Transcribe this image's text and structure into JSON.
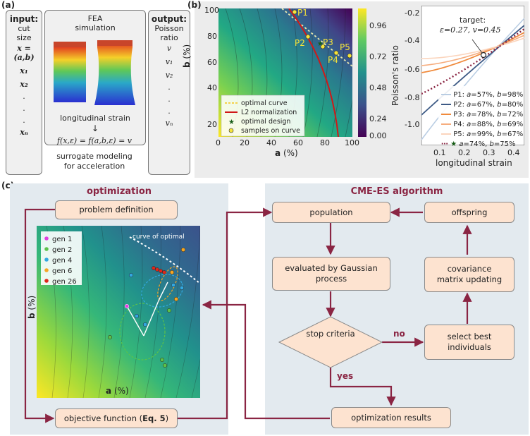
{
  "panel_a": {
    "label": "(a)",
    "input_title": "input",
    "input_lines": [
      "cut",
      "size"
    ],
    "input_vars": [
      "x = (a,b)",
      "x₁",
      "x₂",
      ".",
      ".",
      ".",
      "xₙ"
    ],
    "fea_title": [
      "FEA",
      "simulation"
    ],
    "strain_label": "longitudinal strain",
    "arrow_glyph": "↓",
    "equation": "f(x,ε) = f(a,b,ε) = v",
    "surrogate_caption": [
      "surrogate modeling",
      "for acceleration"
    ],
    "output_title": "output",
    "output_lines": [
      "Poisson",
      "ratio"
    ],
    "output_vars": [
      "v",
      "v₁",
      "v₂",
      ".",
      ".",
      ".",
      "vₙ"
    ]
  },
  "panel_b": {
    "label": "(b)",
    "heatmap": {
      "xlabel_bold": "a",
      "xlabel_unit": "(%)",
      "ylabel_bold": "b",
      "ylabel_unit": "(%)",
      "xticks": [
        "0",
        "20",
        "40",
        "60",
        "80",
        "100"
      ],
      "yticks": [
        "20",
        "40",
        "60",
        "80",
        "100"
      ],
      "cbar_ticks": [
        "0.96",
        "0.72",
        "0.48",
        "0.24",
        "0.00"
      ],
      "points": [
        "P1",
        "P2",
        "P3",
        "P4",
        "P5"
      ],
      "legend": [
        "optimal curve",
        "L2 normalization",
        "optimal design",
        "samples on curve"
      ]
    },
    "curve_chart": {
      "target_line1": "target:",
      "target_line2": "ε=0.27, v=0.45",
      "ylabel": "Poisson's ratio",
      "xlabel": "longitudinal strain",
      "xticks": [
        "0.1",
        "0.2",
        "0.3",
        "0.4"
      ],
      "yticks": [
        "-0.2",
        "-0.4",
        "-0.6",
        "-0.8",
        "-1.0"
      ],
      "legend": [
        {
          "name": "P1",
          "a": "57%",
          "b": "98%",
          "color": "#b9cde3"
        },
        {
          "name": "P2",
          "a": "67%",
          "b": "80%",
          "color": "#3d5a85"
        },
        {
          "name": "P3",
          "a": "78%",
          "b": "72%",
          "color": "#f08a3c"
        },
        {
          "name": "P4",
          "a": "88%",
          "b": "69%",
          "color": "#f6ad7e"
        },
        {
          "name": "P5",
          "a": "99%",
          "b": "67%",
          "color": "#fbd5bd"
        },
        {
          "name": "",
          "a": "74%",
          "b": "75%",
          "color": "#8a2543"
        }
      ]
    }
  },
  "panel_c": {
    "label": "(c)",
    "opt_title": "optimization",
    "algo_title": "CME-ES algorithm",
    "problem_definition": "problem definition",
    "objective_function_pre": "objective function (",
    "objective_function_bold": "Eq. 5",
    "objective_function_post": ")",
    "population": "population",
    "offspring": "offspring",
    "evaluated": "evaluated by Gaussian process",
    "covariance": "covariance matrix updating",
    "stop": "stop criteria",
    "select_best": "select best individuals",
    "results": "optimization results",
    "no": "no",
    "yes": "yes",
    "contour_label": "curve of optimal",
    "axis_a": "a",
    "axis_b": "b",
    "unit": "(%)",
    "gen_legend": [
      {
        "label": "gen 1",
        "color": "#e040e0"
      },
      {
        "label": "gen 2",
        "color": "#5cc24a"
      },
      {
        "label": "gen 4",
        "color": "#32a8e0"
      },
      {
        "label": "gen 6",
        "color": "#f5a623"
      },
      {
        "label": "gen 26",
        "color": "#e0261a"
      }
    ]
  },
  "colors": {
    "accent": "#8a2543",
    "flow_fill": "#fde3d0",
    "panel_bg": "#e3eaef"
  }
}
